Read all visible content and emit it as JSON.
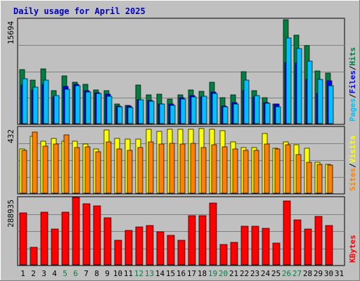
{
  "chart_data": {
    "type": "bar",
    "title": "Daily usage for April 2025",
    "colors": {
      "background": "#C0C0C0",
      "frame_border": "#000000",
      "title": "#0000C0",
      "hits": "#008040",
      "files": "#0000FF",
      "pages": "#00C0FF",
      "visits": "#FFFF00",
      "sites": "#FF8000",
      "kbytes": "#FF0000",
      "weekend_day": "#008040",
      "weekday": "#000000"
    },
    "categories": [
      "1",
      "2",
      "3",
      "4",
      "5",
      "6",
      "7",
      "8",
      "9",
      "10",
      "11",
      "12",
      "13",
      "14",
      "15",
      "16",
      "17",
      "18",
      "19",
      "20",
      "21",
      "22",
      "23",
      "24",
      "25",
      "26",
      "27",
      "28",
      "29",
      "30",
      "31"
    ],
    "weekend_days": [
      "5",
      "6",
      "12",
      "13",
      "19",
      "20",
      "26",
      "27"
    ],
    "panels": [
      {
        "id": "hits-files-pages",
        "max_label": "15694",
        "ylim": [
          0,
          15694
        ],
        "legend": [
          "Pages",
          "/",
          "Files",
          "/",
          "Hits"
        ],
        "legend_colors": [
          "#00C0FF",
          "#000000",
          "#0000FF",
          "#000000",
          "#008040"
        ],
        "series": [
          {
            "name": "Hits",
            "values": [
              8100,
              6500,
              8200,
              5000,
              7200,
              6200,
              5900,
              5100,
              5000,
              3000,
              2700,
              5800,
              4300,
              4400,
              3700,
              4300,
              5100,
              4800,
              6200,
              3900,
              4300,
              7800,
              5000,
              3900,
              3000,
              15600,
              13300,
              11700,
              7900,
              7600,
              0
            ]
          },
          {
            "name": "Files",
            "values": [
              5800,
              5100,
              5900,
              4000,
              5600,
              5900,
              4900,
              4600,
              4400,
              2600,
              2600,
              3600,
              3500,
              3000,
              3000,
              3900,
              4200,
              4000,
              4700,
              2600,
              3200,
              4900,
              4000,
              3200,
              2900,
              9200,
              9100,
              6600,
              4500,
              6400,
              0
            ]
          },
          {
            "name": "Pages",
            "values": [
              6700,
              5500,
              6500,
              4200,
              5200,
              5700,
              4700,
              4500,
              4100,
              2500,
              2400,
              3600,
              3400,
              2900,
              2700,
              3700,
              4000,
              4100,
              4500,
              2500,
              3000,
              6500,
              4200,
              3100,
              2500,
              12800,
              11300,
              9400,
              6600,
              5700,
              0
            ]
          }
        ]
      },
      {
        "id": "visits-sites",
        "max_label": "432",
        "ylim": [
          0,
          432
        ],
        "legend": [
          "Sites",
          "/",
          "Visits"
        ],
        "legend_colors": [
          "#FF8000",
          "#000000",
          "#FFFF00"
        ],
        "series": [
          {
            "name": "Visits",
            "values": [
              290,
              370,
              340,
              360,
              340,
              340,
              320,
              290,
              415,
              360,
              355,
              355,
              420,
              405,
              420,
              420,
              420,
              425,
              420,
              410,
              335,
              300,
              300,
              390,
              295,
              335,
              315,
              295,
              200,
              190,
              0
            ]
          },
          {
            "name": "Sites",
            "values": [
              280,
              400,
              310,
              320,
              380,
              300,
              305,
              270,
              335,
              290,
              280,
              300,
              335,
              320,
              325,
              320,
              325,
              300,
              315,
              305,
              290,
              280,
              280,
              320,
              290,
              315,
              255,
              200,
              190,
              185,
              0
            ]
          }
        ]
      },
      {
        "id": "kbytes",
        "max_label": "288935",
        "ylim": [
          0,
          288935
        ],
        "legend": [
          "KBytes"
        ],
        "legend_colors": [
          "#FF0000"
        ],
        "series": [
          {
            "name": "KBytes",
            "values": [
              223000,
              76000,
              226000,
              152000,
              226000,
              288000,
              263000,
              252000,
              202000,
              104000,
              147000,
              163000,
              170000,
              140000,
              126000,
              105000,
              212000,
              211000,
              266000,
              86000,
              96000,
              167000,
              167000,
              158000,
              92000,
              274000,
              193000,
              153000,
              208000,
              169000,
              0
            ]
          }
        ]
      }
    ]
  }
}
